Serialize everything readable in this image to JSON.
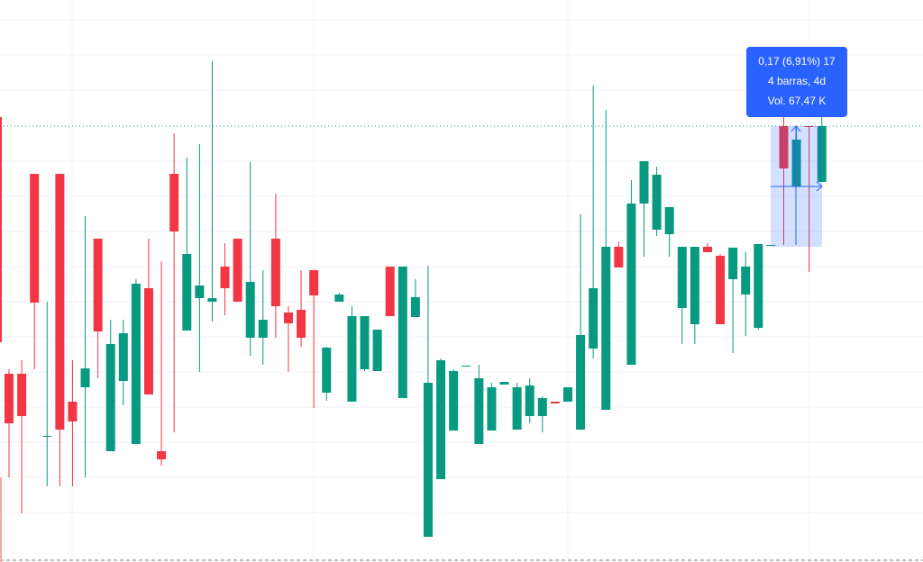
{
  "chart_data": {
    "type": "candlestick",
    "ylim": [
      0,
      624
    ],
    "up_color": "#089981",
    "down_color": "#f23645",
    "open": [
      209,
      209,
      431,
      139,
      431,
      178,
      194,
      359,
      123,
      201,
      131,
      304,
      123,
      431,
      257,
      293,
      289,
      328,
      359,
      249,
      249,
      359,
      277,
      280,
      324,
      188,
      289,
      178,
      214,
      212,
      328,
      182,
      272,
      28,
      92,
      146,
      217,
      131,
      146,
      197,
      147,
      162,
      162,
      178,
      178,
      147,
      237,
      169,
      350,
      219,
      398,
      369,
      364,
      282,
      264,
      350,
      340,
      314,
      297,
      260,
      352,
      484,
      417,
      484,
      422
    ],
    "high": [
      214,
      224,
      431,
      289,
      431,
      224,
      384,
      359,
      269,
      269,
      314,
      359,
      334,
      476,
      449,
      464,
      556,
      354,
      359,
      444,
      324,
      409,
      284,
      324,
      324,
      239,
      299,
      284,
      273,
      258,
      328,
      328,
      314,
      329,
      226,
      214,
      218,
      219,
      199,
      200,
      199,
      204,
      184,
      178,
      194,
      386,
      529,
      502,
      356,
      424,
      445,
      439,
      394,
      350,
      350,
      354,
      342,
      349,
      344,
      353,
      352,
      504,
      484,
      484,
      494
    ],
    "low": [
      94,
      54,
      214,
      84,
      84,
      84,
      94,
      204,
      123,
      174,
      131,
      186,
      107,
      144,
      257,
      211,
      267,
      274,
      289,
      229,
      219,
      249,
      211,
      239,
      171,
      179,
      289,
      178,
      212,
      212,
      273,
      182,
      272,
      28,
      92,
      146,
      217,
      131,
      146,
      197,
      147,
      154,
      144,
      176,
      178,
      147,
      226,
      169,
      327,
      219,
      339,
      362,
      339,
      242,
      242,
      344,
      264,
      232,
      251,
      258,
      352,
      352,
      417,
      322,
      422
    ],
    "close": [
      154,
      162,
      288,
      140,
      147,
      156,
      215,
      256,
      242,
      254,
      309,
      186,
      114,
      367,
      342,
      307,
      293,
      304,
      289,
      311,
      269,
      284,
      265,
      249,
      296,
      238,
      297,
      273,
      273,
      258,
      273,
      328,
      294,
      199,
      224,
      212,
      218,
      204,
      194,
      200,
      194,
      196,
      182,
      176,
      194,
      252,
      304,
      350,
      327,
      398,
      445,
      430,
      394,
      350,
      350,
      344,
      264,
      349,
      328,
      353,
      352,
      437,
      469,
      483,
      484
    ],
    "tooltip": [
      "0,17 (6,91%) 17",
      "4 barras, 4d",
      "Vol. 67,47 K"
    ]
  }
}
